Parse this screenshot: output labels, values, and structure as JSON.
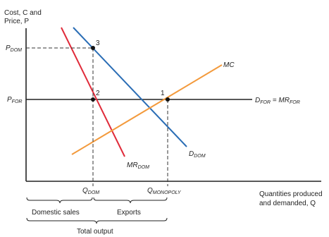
{
  "axes": {
    "y_label_line1": "Cost, C and",
    "y_label_line2": "Price, P",
    "x_label_line1": "Quantities produced",
    "x_label_line2": "and demanded, Q"
  },
  "ticks": {
    "p_dom_main": "P",
    "p_dom_sub": "DOM",
    "p_for_main": "P",
    "p_for_sub": "FOR",
    "q_dom_main": "Q",
    "q_dom_sub": "DOM",
    "q_mono_main": "Q",
    "q_mono_sub": "MONOPOLY"
  },
  "curves": {
    "mc": "MC",
    "d_dom_main": "D",
    "d_dom_sub": "DOM",
    "mr_dom_main": "MR",
    "mr_dom_sub": "DOM",
    "d_for_main": "D",
    "d_for_sub": "FOR",
    "d_for_equals": " = MR",
    "mr_for_sub": "FOR"
  },
  "points": {
    "p1": "1",
    "p2": "2",
    "p3": "3"
  },
  "braces": {
    "domestic_sales": "Domestic sales",
    "exports": "Exports",
    "total_output": "Total output"
  },
  "colors": {
    "axis": "#222222",
    "d_dom": "#2a6db5",
    "mr_dom": "#e02b3a",
    "mc": "#f39a3c",
    "d_for": "#222222",
    "dashed": "#333333",
    "point": "#111111"
  }
}
